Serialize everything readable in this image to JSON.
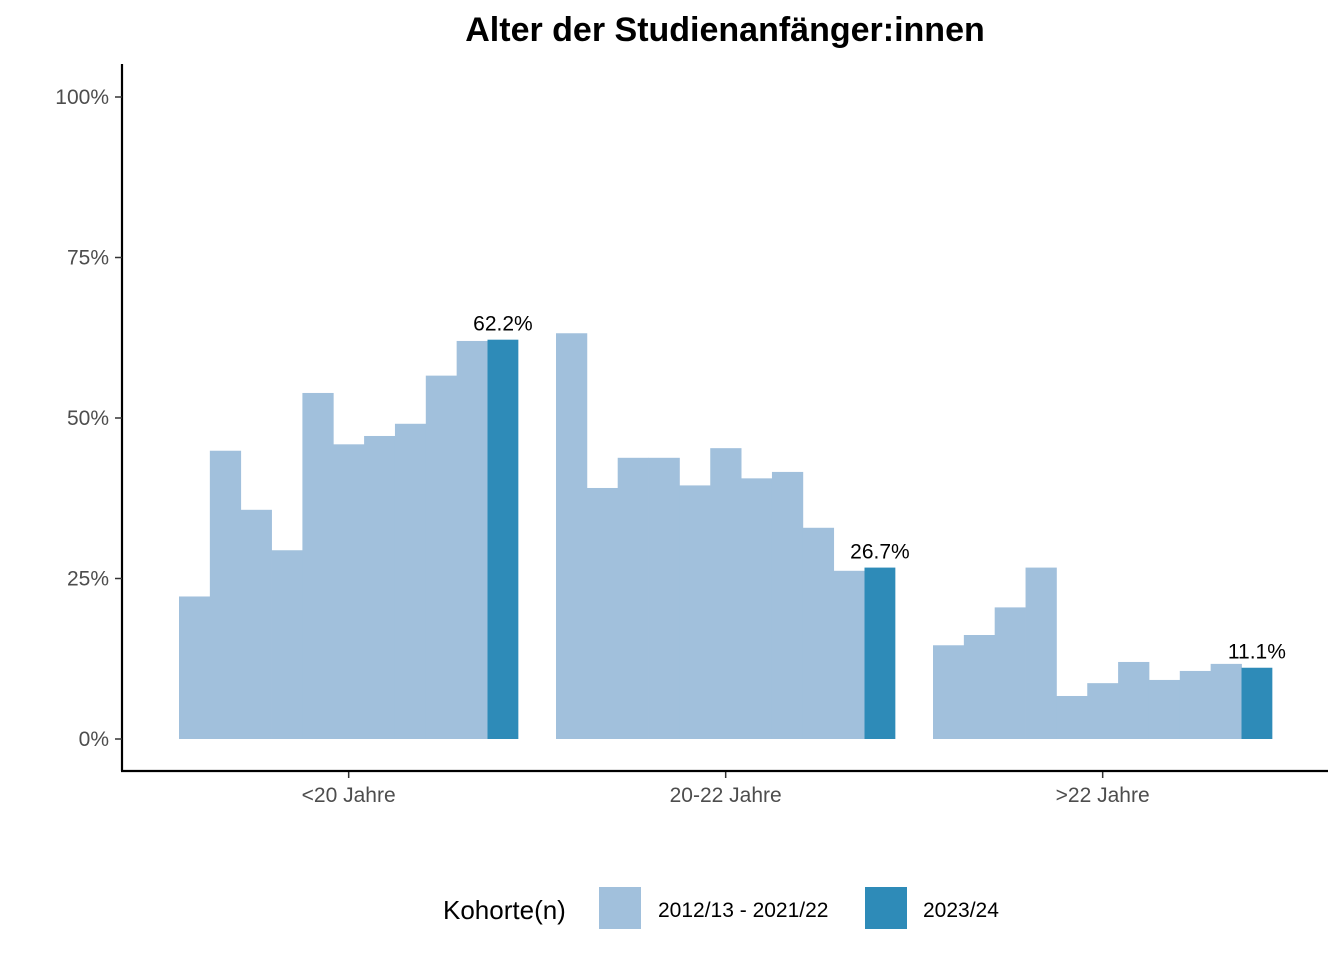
{
  "chart_data": {
    "type": "bar",
    "title": "Alter der Studienanfänger:innen",
    "xlabel": "",
    "ylabel": "",
    "ylim": [
      -0.05,
      1.05
    ],
    "y_ticks": [
      0,
      0.25,
      0.5,
      0.75,
      1.0
    ],
    "y_tick_labels": [
      "0%",
      "25%",
      "50%",
      "75%",
      "100%"
    ],
    "grid": false,
    "legend_position": "bottom",
    "colors": {
      "history": "#a1c0dc",
      "current": "#2e8bb8",
      "axis": "#000000"
    },
    "categories": [
      "<20 Jahre",
      "20-22 Jahre",
      ">22 Jahre"
    ],
    "series": [
      {
        "name": "2012/13 - 2021/22",
        "values_per_category": [
          [
            0.222,
            0.449,
            0.357,
            0.294,
            0.539,
            0.459,
            0.472,
            0.491,
            0.566,
            0.62
          ],
          [
            0.632,
            0.391,
            0.438,
            0.438,
            0.395,
            0.453,
            0.406,
            0.416,
            0.329,
            0.262
          ],
          [
            0.146,
            0.162,
            0.205,
            0.267,
            0.067,
            0.087,
            0.12,
            0.092,
            0.106,
            0.117
          ]
        ]
      },
      {
        "name": "2023/24",
        "values": [
          0.622,
          0.267,
          0.111
        ],
        "value_labels": [
          "62.2%",
          "26.7%",
          "11.1%"
        ]
      }
    ]
  },
  "legend": {
    "title": "Kohorte(n)",
    "items": [
      {
        "label": "2012/13 - 2021/22",
        "color": "#a1c0dc"
      },
      {
        "label": "2023/24",
        "color": "#2e8bb8"
      }
    ]
  }
}
